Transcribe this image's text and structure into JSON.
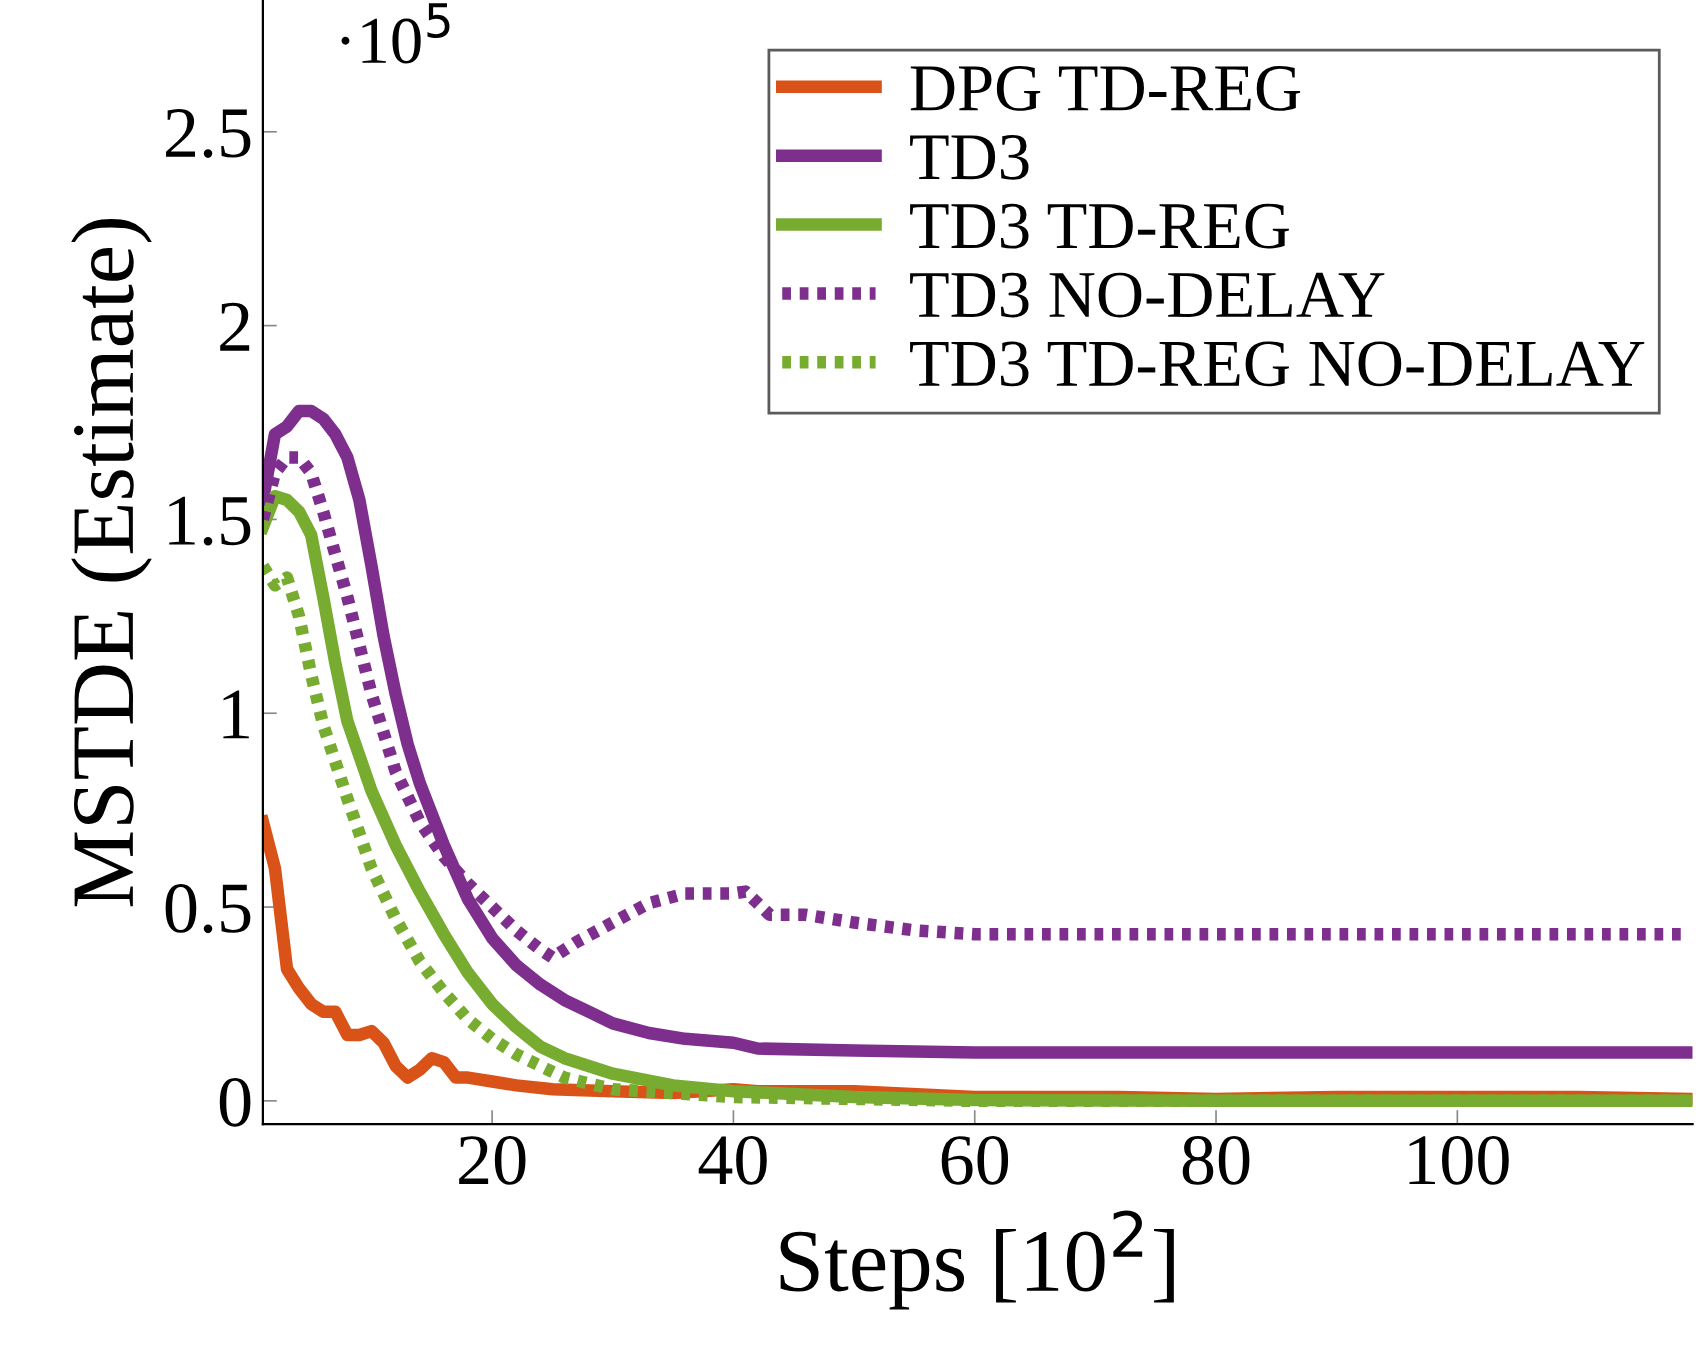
{
  "chart_data": {
    "type": "line",
    "xlabel": "Steps [10$^{2}$]",
    "ylabel": "MSTDE (Estimate)",
    "annotations": [
      "·10$^{5}$"
    ],
    "xlim": [
      1,
      119.5
    ],
    "xticks": [
      20,
      40,
      60,
      80,
      100
    ],
    "ylim": [
      -0.06,
      2.84
    ],
    "yticks": [
      0,
      0.5,
      1,
      1.5,
      2,
      2.5
    ],
    "grid": false,
    "legend": "top right",
    "series": [
      {
        "name": "DPG TD-REG",
        "color": "#d95319",
        "line_style": "solid",
        "x": [
          1,
          2,
          3,
          4,
          5,
          6,
          7,
          8,
          9,
          10,
          11,
          12,
          13,
          14,
          15,
          16,
          17,
          18,
          20,
          22,
          25,
          30,
          35,
          40,
          42,
          50,
          60,
          72,
          80,
          90,
          100,
          110,
          119
        ],
        "values": [
          0.72,
          0.6,
          0.34,
          0.29,
          0.25,
          0.23,
          0.23,
          0.17,
          0.17,
          0.18,
          0.15,
          0.09,
          0.06,
          0.08,
          0.11,
          0.1,
          0.06,
          0.06,
          0.05,
          0.04,
          0.03,
          0.025,
          0.02,
          0.03,
          0.025,
          0.025,
          0.01,
          0.01,
          0.005,
          0.01,
          0.01,
          0.01,
          0.005
        ]
      },
      {
        "name": "TD3",
        "color": "#7e2f8e",
        "line_style": "solid",
        "x": [
          1,
          2,
          3,
          4,
          5,
          6,
          7,
          8,
          9,
          10,
          11,
          12,
          13,
          14,
          16,
          18,
          20,
          22,
          24,
          26,
          28,
          30,
          33,
          36,
          40,
          42,
          50,
          60,
          80,
          100,
          119
        ],
        "values": [
          1.55,
          1.72,
          1.74,
          1.78,
          1.78,
          1.76,
          1.72,
          1.66,
          1.55,
          1.38,
          1.2,
          1.05,
          0.92,
          0.82,
          0.66,
          0.52,
          0.42,
          0.35,
          0.3,
          0.26,
          0.23,
          0.2,
          0.175,
          0.16,
          0.15,
          0.135,
          0.13,
          0.125,
          0.125,
          0.125,
          0.125
        ]
      },
      {
        "name": "TD3 TD-REG",
        "color": "#77ac30",
        "line_style": "solid",
        "x": [
          1,
          2,
          3,
          4,
          5,
          6,
          7,
          8,
          10,
          12,
          14,
          16,
          18,
          20,
          22,
          24,
          26,
          30,
          35,
          40,
          50,
          60,
          80,
          119
        ],
        "values": [
          1.48,
          1.56,
          1.55,
          1.52,
          1.46,
          1.3,
          1.13,
          0.98,
          0.8,
          0.66,
          0.54,
          0.43,
          0.33,
          0.25,
          0.19,
          0.14,
          0.11,
          0.07,
          0.04,
          0.025,
          0.01,
          0.002,
          0,
          0
        ]
      },
      {
        "name": "TD3 NO-DELAY",
        "color": "#7e2f8e",
        "line_style": "dotted",
        "x": [
          1,
          2,
          3,
          4,
          5,
          6,
          8,
          10,
          12,
          14,
          16,
          18,
          20,
          22,
          24,
          25,
          27,
          30,
          33,
          36,
          40,
          41,
          43,
          46,
          50,
          55,
          60,
          80,
          100,
          119
        ],
        "values": [
          1.5,
          1.62,
          1.66,
          1.66,
          1.62,
          1.52,
          1.3,
          1.05,
          0.85,
          0.72,
          0.63,
          0.56,
          0.5,
          0.44,
          0.39,
          0.37,
          0.41,
          0.46,
          0.51,
          0.535,
          0.535,
          0.54,
          0.48,
          0.48,
          0.46,
          0.44,
          0.43,
          0.43,
          0.43,
          0.43
        ]
      },
      {
        "name": "TD3 TD-REG NO-DELAY",
        "color": "#77ac30",
        "line_style": "dotted",
        "x": [
          1,
          2,
          3,
          4,
          5,
          6,
          8,
          10,
          12,
          14,
          16,
          18,
          20,
          22,
          24,
          26,
          30,
          35,
          40,
          50,
          60,
          119
        ],
        "values": [
          1.38,
          1.33,
          1.35,
          1.25,
          1.1,
          0.97,
          0.78,
          0.6,
          0.47,
          0.36,
          0.28,
          0.21,
          0.16,
          0.12,
          0.09,
          0.06,
          0.03,
          0.02,
          0.01,
          0.005,
          0,
          0
        ]
      }
    ]
  }
}
